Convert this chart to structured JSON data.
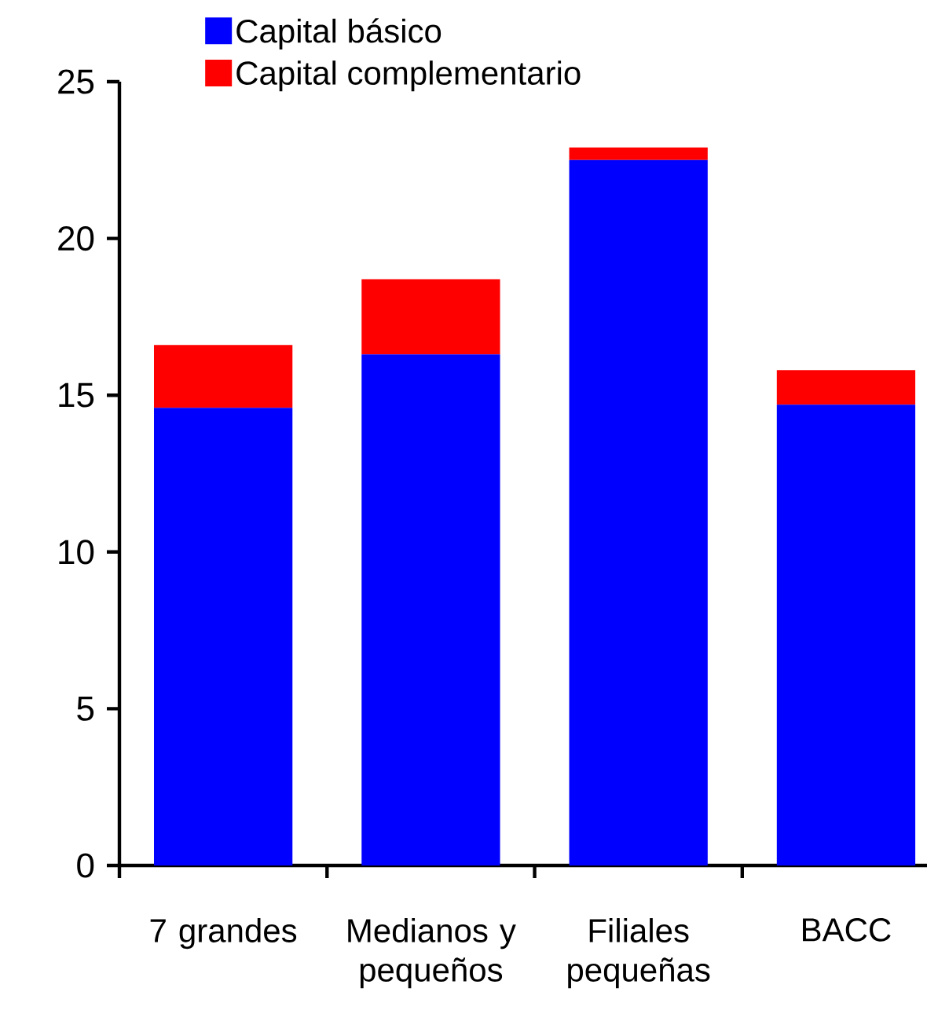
{
  "chart_data": {
    "type": "bar",
    "stacked": true,
    "categories": [
      "7 grandes",
      "Medianos y pequeños",
      "Filiales pequeñas",
      "BACC"
    ],
    "series": [
      {
        "name": "Capital básico",
        "color": "#0000ff",
        "values": [
          14.6,
          16.3,
          22.5,
          14.7
        ]
      },
      {
        "name": "Capital complementario",
        "color": "#ff0000",
        "values": [
          2.0,
          2.4,
          0.4,
          1.1
        ]
      }
    ],
    "ylim": [
      0,
      25
    ],
    "yticks": [
      0,
      5,
      10,
      15,
      20,
      25
    ],
    "legend": "top"
  }
}
